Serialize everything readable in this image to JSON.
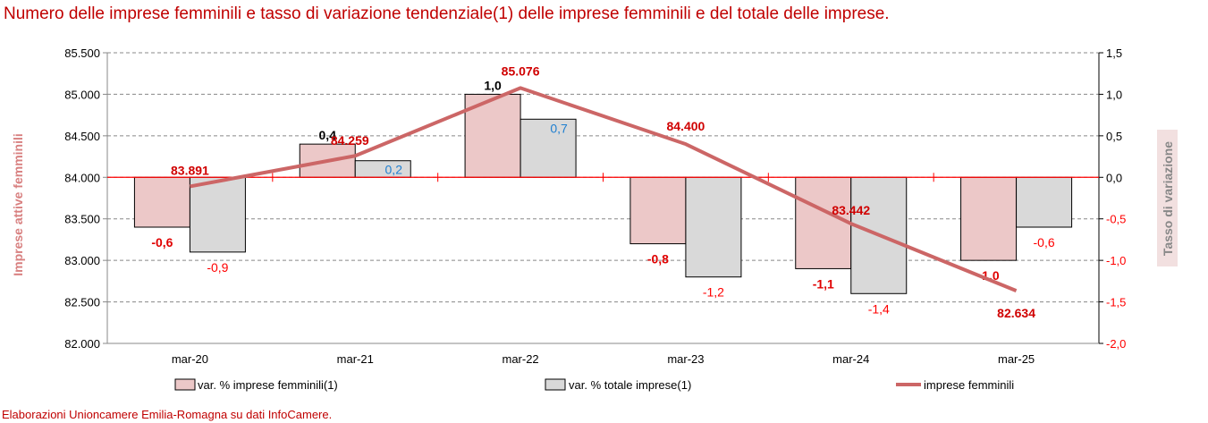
{
  "title": "Numero delle imprese femminili e tasso di variazione tendenziale(1) delle imprese femminili e del totale delle imprese.",
  "footer": "Elaborazioni Unioncamere Emilia-Romagna su dati InfoCamere.",
  "chart_data": {
    "type": "bar+line",
    "categories": [
      "mar-20",
      "mar-21",
      "mar-22",
      "mar-23",
      "mar-24",
      "mar-25"
    ],
    "series": [
      {
        "name": "var. % imprese femminili(1)",
        "type": "bar",
        "axis": "right",
        "color": "#ecc8c8",
        "values": [
          -0.6,
          0.4,
          1.0,
          -0.8,
          -1.1,
          -1.0
        ],
        "labels": [
          "-0,6",
          "0,4",
          "1,0",
          "-0,8",
          "-1,1",
          "-1,0"
        ]
      },
      {
        "name": "var. % totale imprese(1)",
        "type": "bar",
        "axis": "right",
        "color": "#d9d9d9",
        "values": [
          -0.9,
          0.2,
          0.7,
          -1.2,
          -1.4,
          -0.6
        ],
        "labels": [
          "-0,9",
          "0,2",
          "0,7",
          "-1,2",
          "-1,4",
          "-0,6"
        ]
      },
      {
        "name": "imprese femminili",
        "type": "line",
        "axis": "left",
        "color": "#cc6666",
        "values": [
          83891,
          84259,
          85076,
          84400,
          83442,
          82634
        ],
        "labels": [
          "83.891",
          "84.259",
          "85.076",
          "84.400",
          "83.442",
          "82.634"
        ]
      }
    ],
    "left_axis": {
      "label": "Imprese attive femminili",
      "range": [
        82000,
        85500
      ],
      "ticks": [
        "82.000",
        "82.500",
        "83.000",
        "83.500",
        "84.000",
        "84.500",
        "85.000",
        "85.500"
      ]
    },
    "right_axis": {
      "label": "Tasso di variazione",
      "range": [
        -2.0,
        1.5
      ],
      "ticks": [
        "-2,0",
        "-1,5",
        "-1,0",
        "-0,5",
        "0,0",
        "0,5",
        "1,0",
        "1,5"
      ]
    },
    "grid": true,
    "legend_position": "bottom"
  }
}
